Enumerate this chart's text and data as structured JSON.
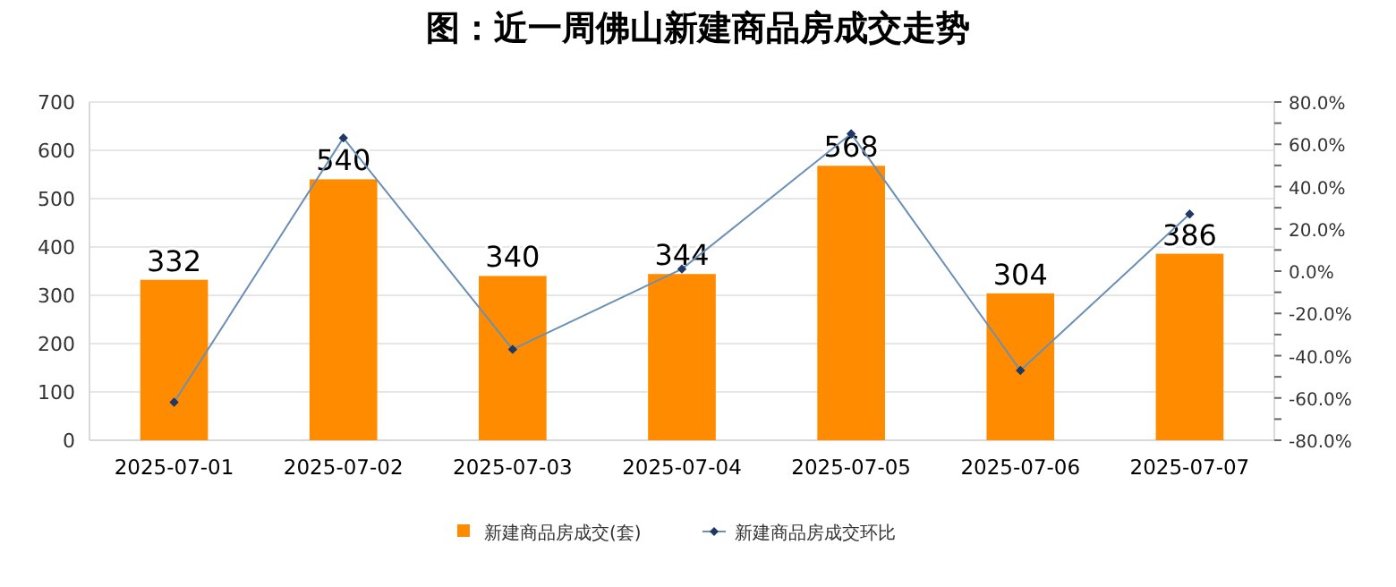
{
  "chart_data": {
    "type": "bar",
    "title": "图：近一周佛山新建商品房成交走势",
    "categories": [
      "2025-07-01",
      "2025-07-02",
      "2025-07-03",
      "2025-07-04",
      "2025-07-05",
      "2025-07-06",
      "2025-07-07"
    ],
    "series": [
      {
        "name": "新建商品房成交(套)",
        "color": "#ff8c00",
        "values": [
          332,
          540,
          340,
          344,
          568,
          304,
          386
        ],
        "data_labels": true
      },
      {
        "name": "新建商品房成交环比",
        "type": "line",
        "axis": "y2",
        "color": "#6b8fb5",
        "marker": "diamond",
        "values": [
          -62,
          63,
          -37,
          1,
          65,
          -47,
          27
        ]
      }
    ],
    "ylim": [
      0,
      700
    ],
    "yticks": [
      0,
      100,
      200,
      300,
      400,
      500,
      600,
      700
    ],
    "y2lim": [
      -80,
      80
    ],
    "y2ticks": [
      {
        "value": -80,
        "label": "-80.0%"
      },
      {
        "value": -70,
        "label": null
      },
      {
        "value": -60,
        "label": "-60.0%"
      },
      {
        "value": -50,
        "label": null
      },
      {
        "value": -40,
        "label": "-40.0%"
      },
      {
        "value": -30,
        "label": null
      },
      {
        "value": -20,
        "label": "-20.0%"
      },
      {
        "value": -10,
        "label": null
      },
      {
        "value": 0,
        "label": "0.0%"
      },
      {
        "value": 10,
        "label": null
      },
      {
        "value": 20,
        "label": "20.0%"
      },
      {
        "value": 30,
        "label": null
      },
      {
        "value": 40,
        "label": "40.0%"
      },
      {
        "value": 50,
        "label": null
      },
      {
        "value": 60,
        "label": "60.0%"
      },
      {
        "value": 70,
        "label": null
      },
      {
        "value": 80,
        "label": "80.0%"
      }
    ],
    "grid": "y",
    "legend": "bottom"
  }
}
